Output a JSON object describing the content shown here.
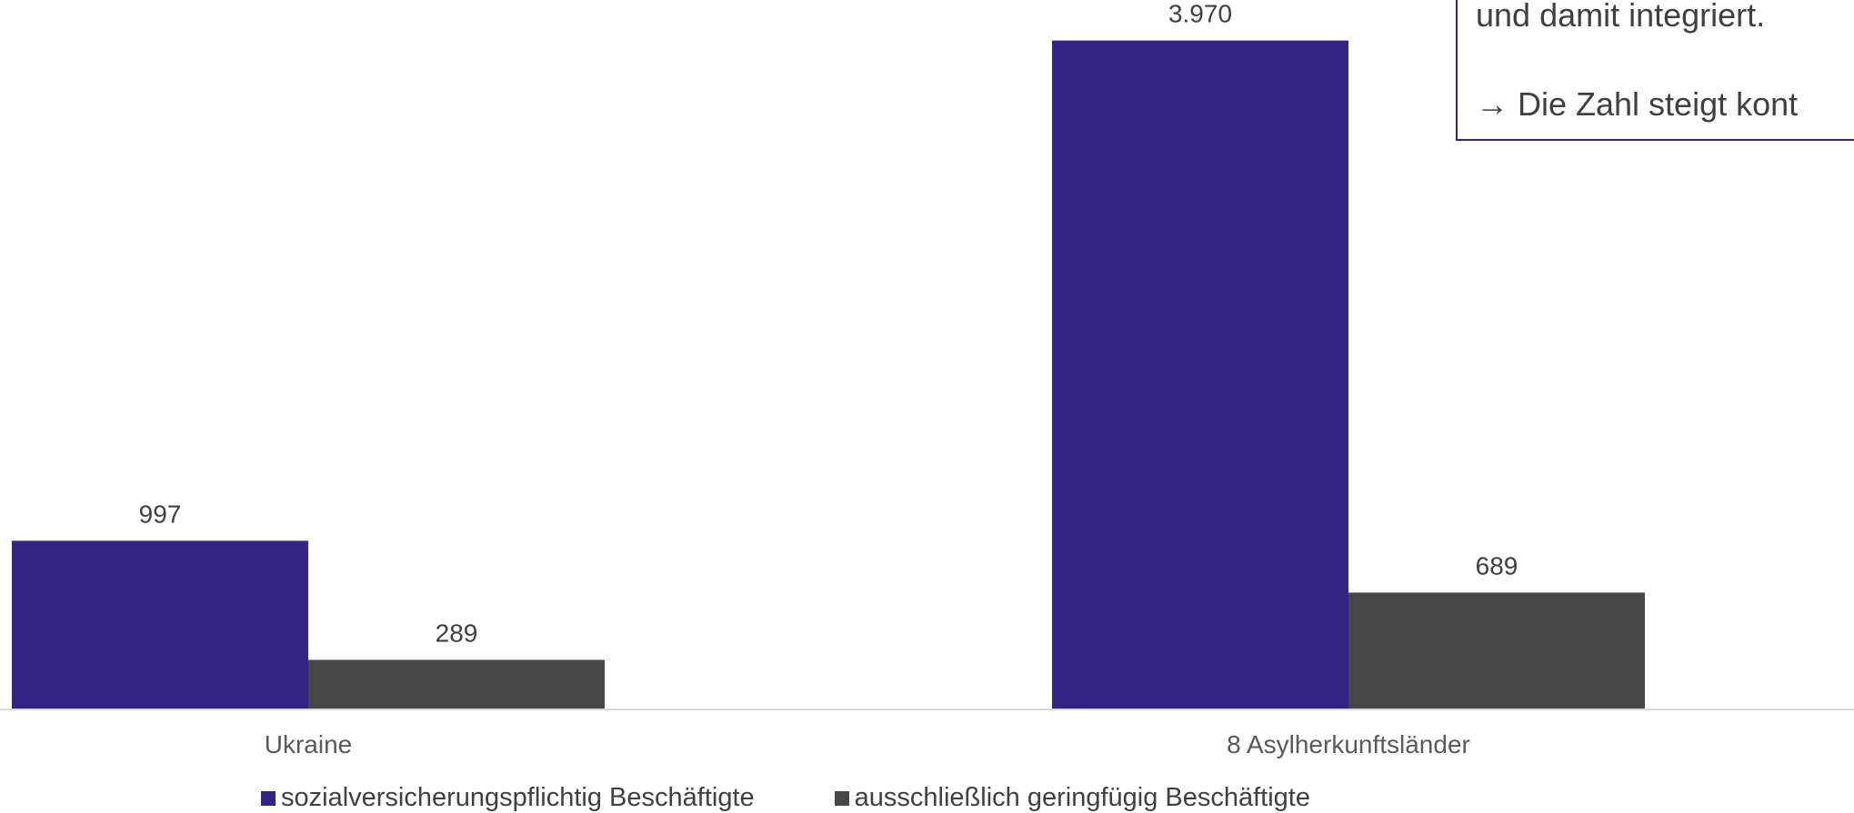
{
  "chart_data": {
    "type": "bar",
    "categories": [
      "Ukraine",
      "8 Asylherkunftsländer"
    ],
    "series": [
      {
        "name": "sozialversicherungspflichtig Beschäftigte",
        "values": [
          997,
          3970
        ],
        "labels": [
          "997",
          "3.970"
        ],
        "color": "#332382"
      },
      {
        "name": "ausschließlich geringfügig Beschäftigte",
        "values": [
          289,
          689
        ],
        "labels": [
          "289",
          "689"
        ],
        "color": "#474747"
      }
    ],
    "ylim": [
      0,
      4200
    ],
    "grid": false,
    "legend": "bottom",
    "axis_color": "#d9d9d9"
  },
  "note": {
    "line1": "und damit integriert.",
    "line2": "→ Die Zahl steigt kont"
  }
}
